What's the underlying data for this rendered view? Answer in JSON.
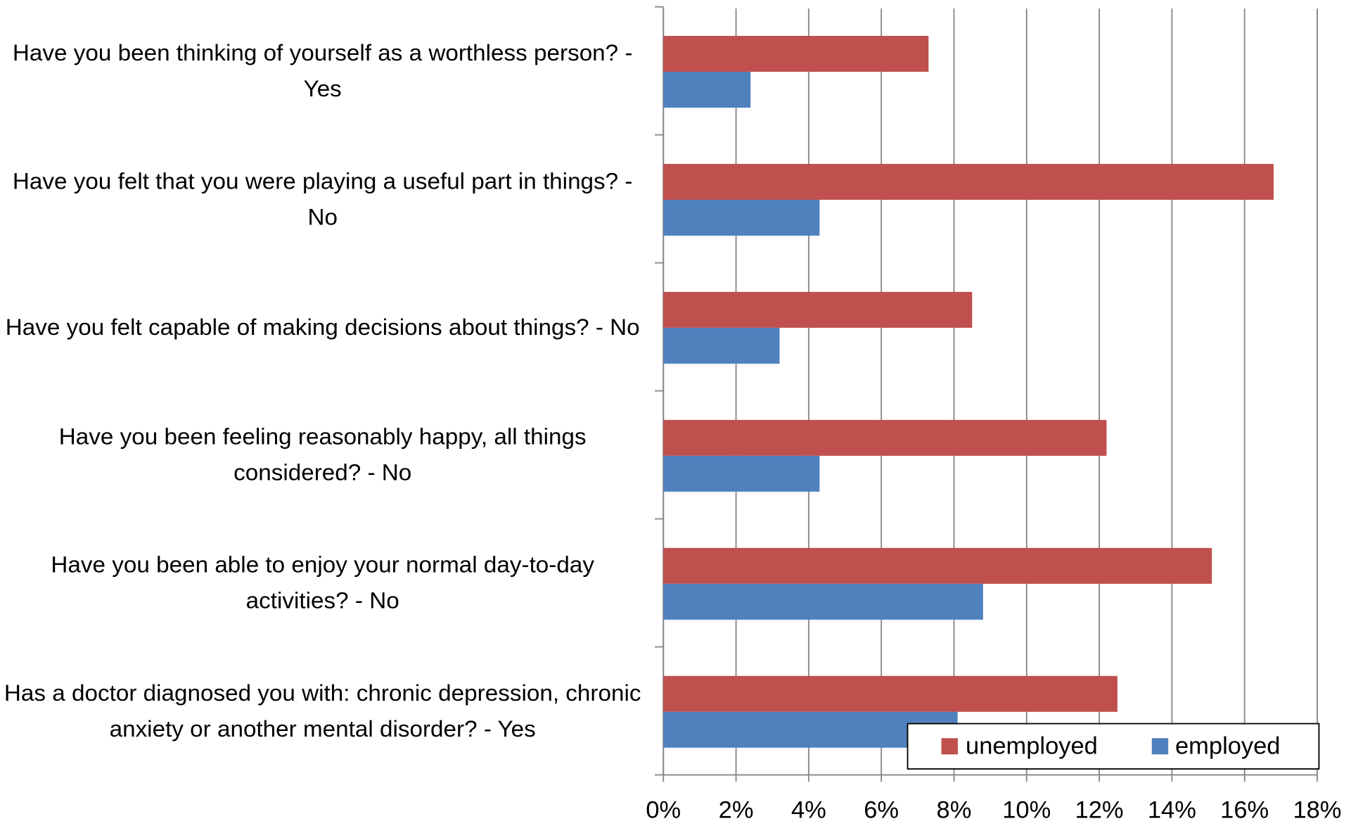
{
  "chart_data": {
    "type": "bar",
    "orientation": "horizontal",
    "categories": [
      "Have you been thinking of yourself as a worthless person? - Yes",
      "Have you felt that you were playing a useful part in things? - No",
      "Have you felt capable of making decisions about things? - No",
      "Have you been feeling reasonably happy, all things considered? - No",
      "Have you been able to enjoy your normal day-to-day activities? - No",
      "Has a doctor diagnosed you with: chronic depression, chronic anxiety or another mental disorder? - Yes"
    ],
    "series": [
      {
        "name": "unemployed",
        "color": "#c0504d",
        "values": [
          7.3,
          16.8,
          8.5,
          12.2,
          15.1,
          12.5
        ]
      },
      {
        "name": "employed",
        "color": "#4f81bd",
        "values": [
          2.4,
          4.3,
          3.2,
          4.3,
          8.8,
          8.1
        ]
      }
    ],
    "xlim": [
      0,
      18
    ],
    "xticks": [
      {
        "value": 0,
        "label": "0%"
      },
      {
        "value": 2,
        "label": "2%"
      },
      {
        "value": 4,
        "label": "4%"
      },
      {
        "value": 6,
        "label": "6%"
      },
      {
        "value": 8,
        "label": "8%"
      },
      {
        "value": 10,
        "label": "10%"
      },
      {
        "value": 12,
        "label": "12%"
      },
      {
        "value": 14,
        "label": "14%"
      },
      {
        "value": 16,
        "label": "16%"
      },
      {
        "value": 18,
        "label": "18%"
      }
    ],
    "grid": true,
    "legend": "bottom-right"
  }
}
